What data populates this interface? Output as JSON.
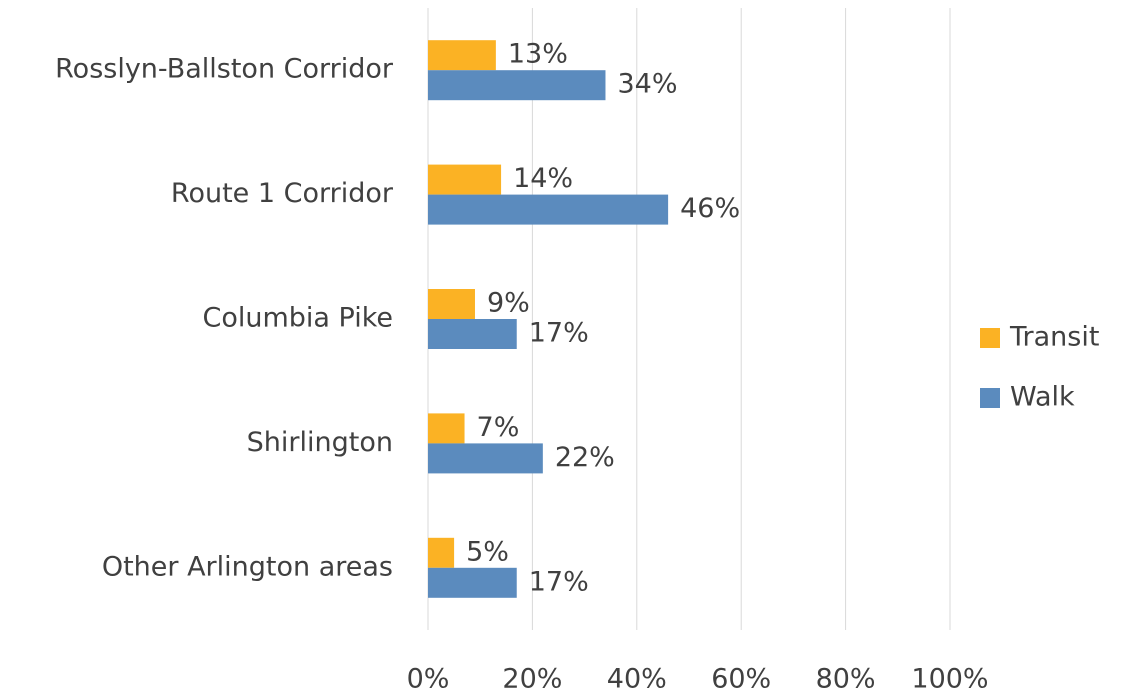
{
  "chart_data": {
    "type": "bar",
    "orientation": "horizontal",
    "categories": [
      "Rosslyn-Ballston Corridor",
      "Route 1 Corridor",
      "Columbia Pike",
      "Shirlington",
      "Other Arlington areas"
    ],
    "series": [
      {
        "name": "Transit",
        "color": "#fbb224",
        "values": [
          13,
          14,
          9,
          7,
          5
        ],
        "value_labels": [
          "13%",
          "14%",
          "9%",
          "7%",
          "5%"
        ]
      },
      {
        "name": "Walk",
        "color": "#5b8bbe",
        "values": [
          34,
          46,
          17,
          22,
          17
        ],
        "value_labels": [
          "34%",
          "46%",
          "17%",
          "22%",
          "17%"
        ]
      }
    ],
    "xlim": [
      0,
      100
    ],
    "xticks": [
      {
        "value": 0,
        "label": "0%"
      },
      {
        "value": 20,
        "label": "20%"
      },
      {
        "value": 40,
        "label": "40%"
      },
      {
        "value": 60,
        "label": "60%"
      },
      {
        "value": 80,
        "label": "80%"
      },
      {
        "value": 100,
        "label": "100%"
      }
    ],
    "grid": true,
    "legend": "right"
  }
}
